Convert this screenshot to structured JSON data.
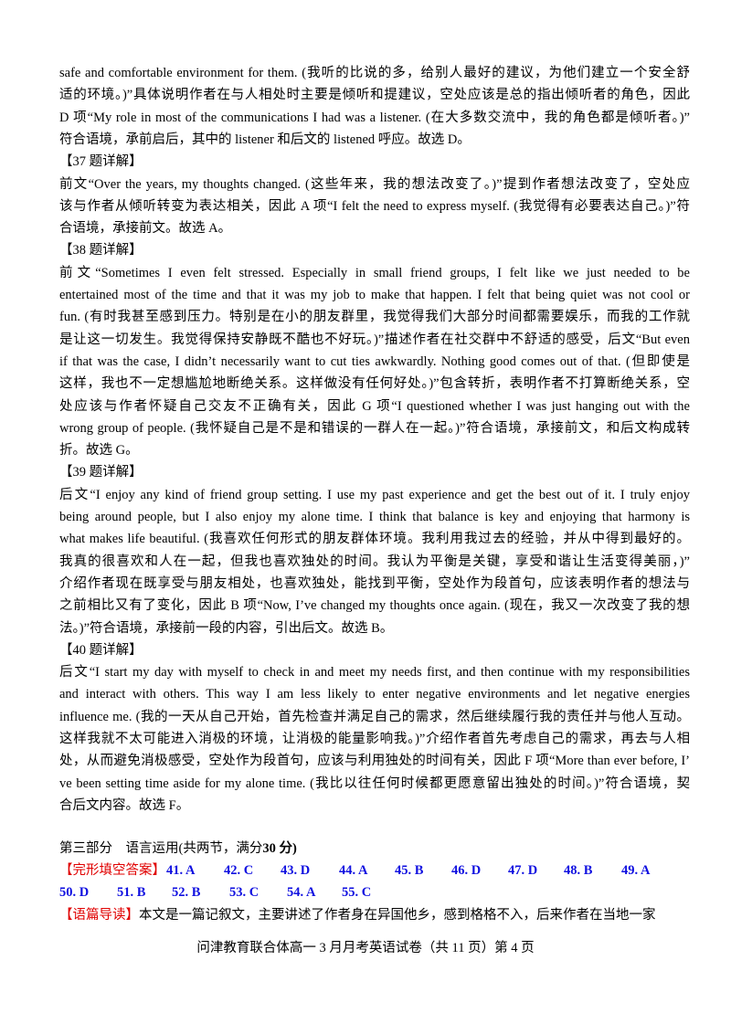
{
  "body_lines": [
    "safe and comfortable environment for them. (我听的比说的多，给别人最好的建议，为他们建立一个安全舒",
    "适的环境。)”具体说明作者在与人相处时主要是倾听和提建议，空处应该是总的指出倾听者的角色，因此",
    "D 项“My role in most of the communications I had was a listener. (在大多数交流中，我的角色都是倾听者。)”",
    "符合语境，承前启后，其中的 listener 和后文的 listened 呼应。故选 D。",
    "【37 题详解】",
    "前文“Over the years, my thoughts changed. (这些年来，我的想法改变了。)”提到作者想法改变了，空处应",
    "该与作者从倾听转变为表达相关，因此 A 项“I felt the need to express myself. (我觉得有必要表达自己。)”符",
    "合语境，承接前文。故选 A。",
    "【38 题详解】",
    "前文“Sometimes I even felt stressed. Especially in small friend groups, I felt like we just needed to be",
    "entertained most of the time and that it was my job to make that happen. I felt that being quiet was not cool or",
    "fun. (有时我甚至感到压力。特别是在小的朋友群里，我觉得我们大部分时间都需要娱乐，而我的工作就",
    "是让这一切发生。我觉得保持安静既不酷也不好玩。)”描述作者在社交群中不舒适的感受，后文“But even",
    "if that was the case, I didn’t necessarily want to cut ties awkwardly. Nothing good comes out of that. (但即使是",
    "这样，我也不一定想尴尬地断绝关系。这样做没有任何好处。)”包含转折，表明作者不打算断绝关系，空",
    "处应该与作者怀疑自己交友不正确有关，因此 G 项“I questioned whether I was just hanging out with the",
    "wrong group of people. (我怀疑自己是不是和错误的一群人在一起。)”符合语境，承接前文，和后文构成转",
    "折。故选 G。",
    "【39 题详解】",
    "后文“I enjoy any kind of friend group setting. I use my past experience and get the best out of it. I truly enjoy",
    "being around people, but I also enjoy my alone time. I think that balance is key and enjoying that harmony is",
    "what makes life beautiful. (我喜欢任何形式的朋友群体环境。我利用我过去的经验，并从中得到最好的。",
    "我真的很喜欢和人在一起，但我也喜欢独处的时间。我认为平衡是关键，享受和谐让生活变得美丽，)”",
    "介绍作者现在既享受与朋友相处，也喜欢独处，能找到平衡，空处作为段首句，应该表明作者的想法与",
    "之前相比又有了变化，因此 B 项“Now, I’ve changed my thoughts once again. (现在，我又一次改变了我的想",
    "法。)”符合语境，承接前一段的内容，引出后文。故选 B。",
    "【40 题详解】",
    "后文“I start my day with myself to check in and meet my needs first, and then continue with my responsibilities",
    "and interact with others. This way I am less likely to enter negative environments and let negative energies",
    "influence me. (我的一天从自己开始，首先检查并满足自己的需求，然后继续履行我的责任并与他人互动。",
    "这样我就不太可能进入消极的环境，让消极的能量影响我。)”介绍作者首先考虑自己的需求，再去与人相",
    "处，从而避免消极感受，空处作为段首句，应该与利用独处的时间有关，因此 F 项“More than ever before, I’",
    "ve been setting time aside for my alone time. (我比以往任何时候都更愿意留出独处的时间。)”符合语境，契",
    "合后文内容。故选 F。"
  ],
  "section": {
    "part": "第三部分",
    "title": "语言运用(共两节，满分",
    "score": "30 分)"
  },
  "answer_key": {
    "label": "【完形填空答案】",
    "answers": [
      "41. A",
      "42. C",
      "43. D",
      "44. A",
      "45. B",
      "46. D",
      "47. D",
      "48. B",
      "49. A",
      "50. D",
      "51. B",
      "52. B",
      "53. C",
      "54. A",
      "55. C"
    ]
  },
  "guide": {
    "label": "【语篇导读】",
    "text": "本文是一篇记叙文，主要讲述了作者身在异国他乡，感到格格不入，后来作者在当地一家"
  },
  "footer": "问津教育联合体高一 3 月月考英语试卷（共 11 页）第 4 页"
}
